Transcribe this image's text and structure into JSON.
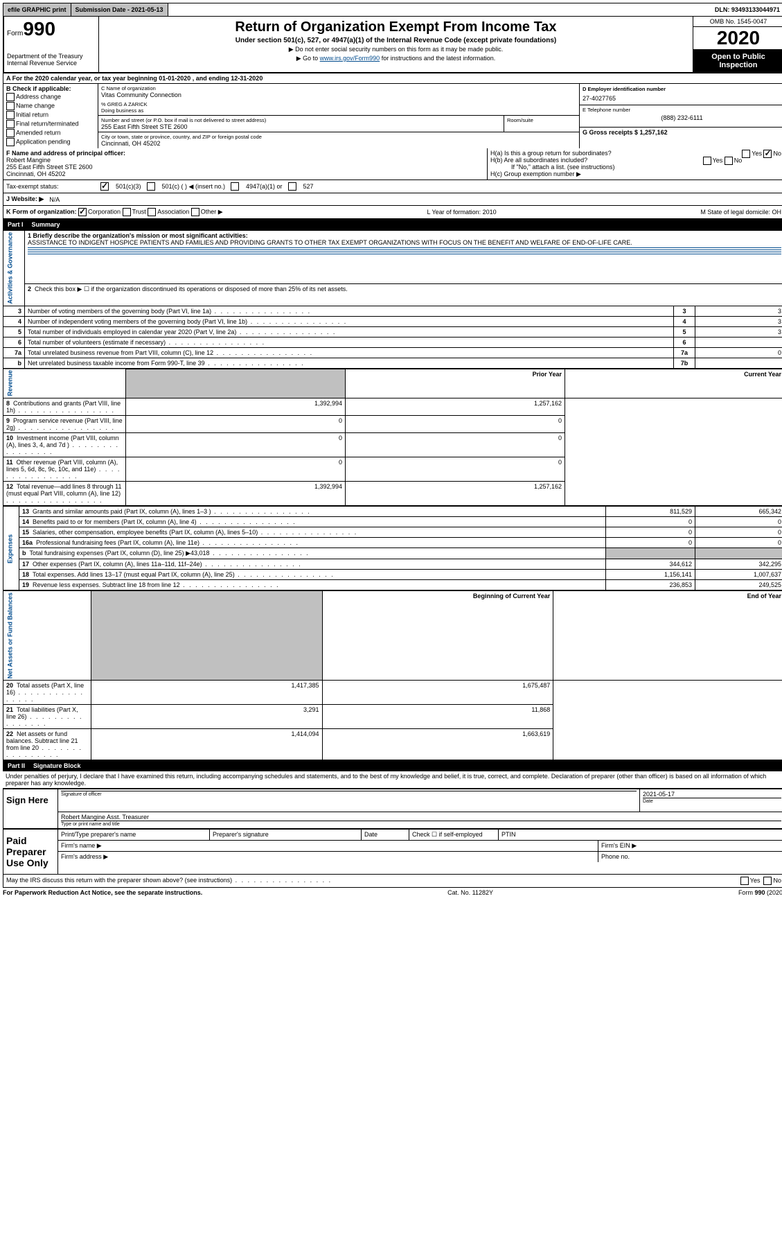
{
  "topbar": {
    "efile_label": "efile GRAPHIC print",
    "sub_date_label": "Submission Date - 2021-05-13",
    "dln_label": "DLN: 93493133044971"
  },
  "header": {
    "form_label": "Form",
    "form_num": "990",
    "dept": "Department of the Treasury",
    "irs": "Internal Revenue Service",
    "title": "Return of Organization Exempt From Income Tax",
    "subtitle": "Under section 501(c), 527, or 4947(a)(1) of the Internal Revenue Code (except private foundations)",
    "note1": "▶ Do not enter social security numbers on this form as it may be made public.",
    "note2_pre": "▶ Go to ",
    "note2_link": "www.irs.gov/Form990",
    "note2_post": " for instructions and the latest information.",
    "omb": "OMB No. 1545-0047",
    "year": "2020",
    "open": "Open to Public Inspection"
  },
  "row_a": "A For the 2020 calendar year, or tax year beginning 01-01-2020   , and ending 12-31-2020",
  "col_b": {
    "hdr": "B Check if applicable:",
    "opts": [
      "Address change",
      "Name change",
      "Initial return",
      "Final return/terminated",
      "Amended return",
      "Application pending"
    ]
  },
  "col_c": {
    "name_lbl": "C Name of organization",
    "name": "Vitas Community Connection",
    "care_lbl": "% GREG A ZARICK",
    "dba_lbl": "Doing business as",
    "addr_lbl": "Number and street (or P.O. box if mail is not delivered to street address)",
    "room_lbl": "Room/suite",
    "addr": "255 East Fifth Street STE 2600",
    "city_lbl": "City or town, state or province, country, and ZIP or foreign postal code",
    "city": "Cincinnati, OH  45202"
  },
  "col_de": {
    "d_lbl": "D Employer identification number",
    "d_val": "27-4027765",
    "e_lbl": "E Telephone number",
    "e_val": "(888) 232-6111",
    "g_lbl": "G Gross receipts $ 1,257,162"
  },
  "row_f": {
    "lbl": "F  Name and address of principal officer:",
    "name": "Robert Mangine",
    "addr1": "255 East Fifth Street STE 2600",
    "addr2": "Cincinnati, OH  45202"
  },
  "row_h": {
    "ha": "H(a)  Is this a group return for subordinates?",
    "hb": "H(b)  Are all subordinates included?",
    "hb_note": "If \"No,\" attach a list. (see instructions)",
    "hc": "H(c)  Group exemption number ▶",
    "yes": "Yes",
    "no": "No"
  },
  "tax": {
    "lbl": "Tax-exempt status:",
    "o1": "501(c)(3)",
    "o2": "501(c) (   ) ◀ (insert no.)",
    "o3": "4947(a)(1) or",
    "o4": "527"
  },
  "web": {
    "lbl": "J   Website: ▶",
    "val": "N/A"
  },
  "row_k": {
    "k_lbl": "K Form of organization:",
    "k_opts": [
      "Corporation",
      "Trust",
      "Association",
      "Other ▶"
    ],
    "l": "L Year of formation: 2010",
    "m": "M State of legal domicile: OH"
  },
  "part1": {
    "num": "Part I",
    "title": "Summary"
  },
  "summary": {
    "line1_lbl": "1 Briefly describe the organization's mission or most significant activities:",
    "line1_txt": "ASSISTANCE TO INDIGENT HOSPICE PATIENTS AND FAMILIES AND PROVIDING GRANTS TO OTHER TAX EXEMPT ORGANIZATIONS WITH FOCUS ON THE BENEFIT AND WELFARE OF END-OF-LIFE CARE.",
    "line2": "Check this box ▶ ☐  if the organization discontinued its operations or disposed of more than 25% of its net assets."
  },
  "gov_label": "Activities & Governance",
  "rev_label": "Revenue",
  "exp_label": "Expenses",
  "net_label": "Net Assets or Fund Balances",
  "lines_gov": [
    {
      "n": "3",
      "d": "Number of voting members of the governing body (Part VI, line 1a)",
      "b": "3",
      "v": "3"
    },
    {
      "n": "4",
      "d": "Number of independent voting members of the governing body (Part VI, line 1b)",
      "b": "4",
      "v": "3"
    },
    {
      "n": "5",
      "d": "Total number of individuals employed in calendar year 2020 (Part V, line 2a)",
      "b": "5",
      "v": "3"
    },
    {
      "n": "6",
      "d": "Total number of volunteers (estimate if necessary)",
      "b": "6",
      "v": ""
    },
    {
      "n": "7a",
      "d": "Total unrelated business revenue from Part VIII, column (C), line 12",
      "b": "7a",
      "v": "0"
    },
    {
      "n": "b",
      "d": "Net unrelated business taxable income from Form 990-T, line 39",
      "b": "7b",
      "v": ""
    }
  ],
  "col_hdr": {
    "prior": "Prior Year",
    "current": "Current Year"
  },
  "lines_rev": [
    {
      "n": "8",
      "d": "Contributions and grants (Part VIII, line 1h)",
      "p": "1,392,994",
      "c": "1,257,162"
    },
    {
      "n": "9",
      "d": "Program service revenue (Part VIII, line 2g)",
      "p": "0",
      "c": "0"
    },
    {
      "n": "10",
      "d": "Investment income (Part VIII, column (A), lines 3, 4, and 7d )",
      "p": "0",
      "c": "0"
    },
    {
      "n": "11",
      "d": "Other revenue (Part VIII, column (A), lines 5, 6d, 8c, 9c, 10c, and 11e)",
      "p": "0",
      "c": "0"
    },
    {
      "n": "12",
      "d": "Total revenue—add lines 8 through 11 (must equal Part VIII, column (A), line 12)",
      "p": "1,392,994",
      "c": "1,257,162"
    }
  ],
  "lines_exp": [
    {
      "n": "13",
      "d": "Grants and similar amounts paid (Part IX, column (A), lines 1–3 )",
      "p": "811,529",
      "c": "665,342"
    },
    {
      "n": "14",
      "d": "Benefits paid to or for members (Part IX, column (A), line 4)",
      "p": "0",
      "c": "0"
    },
    {
      "n": "15",
      "d": "Salaries, other compensation, employee benefits (Part IX, column (A), lines 5–10)",
      "p": "0",
      "c": "0"
    },
    {
      "n": "16a",
      "d": "Professional fundraising fees (Part IX, column (A), line 11e)",
      "p": "0",
      "c": "0"
    },
    {
      "n": "b",
      "d": "Total fundraising expenses (Part IX, column (D), line 25) ▶43,018",
      "p": "",
      "c": "",
      "shade": true
    },
    {
      "n": "17",
      "d": "Other expenses (Part IX, column (A), lines 11a–11d, 11f–24e)",
      "p": "344,612",
      "c": "342,295"
    },
    {
      "n": "18",
      "d": "Total expenses. Add lines 13–17 (must equal Part IX, column (A), line 25)",
      "p": "1,156,141",
      "c": "1,007,637"
    },
    {
      "n": "19",
      "d": "Revenue less expenses. Subtract line 18 from line 12",
      "p": "236,853",
      "c": "249,525"
    }
  ],
  "col_hdr2": {
    "beg": "Beginning of Current Year",
    "end": "End of Year"
  },
  "lines_net": [
    {
      "n": "20",
      "d": "Total assets (Part X, line 16)",
      "p": "1,417,385",
      "c": "1,675,487"
    },
    {
      "n": "21",
      "d": "Total liabilities (Part X, line 26)",
      "p": "3,291",
      "c": "11,868"
    },
    {
      "n": "22",
      "d": "Net assets or fund balances. Subtract line 21 from line 20",
      "p": "1,414,094",
      "c": "1,663,619"
    }
  ],
  "part2": {
    "num": "Part II",
    "title": "Signature Block"
  },
  "sig": {
    "decl": "Under penalties of perjury, I declare that I have examined this return, including accompanying schedules and statements, and to the best of my knowledge and belief, it is true, correct, and complete. Declaration of preparer (other than officer) is based on all information of which preparer has any knowledge.",
    "sign_here": "Sign Here",
    "sig_officer": "Signature of officer",
    "date_lbl": "Date",
    "date_val": "2021-05-17",
    "name_title": "Robert Mangine  Asst. Treasurer",
    "type_lbl": "Type or print name and title",
    "paid": "Paid Preparer Use Only",
    "pp_name": "Print/Type preparer's name",
    "pp_sig": "Preparer's signature",
    "pp_date": "Date",
    "pp_check": "Check ☐ if self-employed",
    "ptin": "PTIN",
    "firm_name": "Firm's name   ▶",
    "firm_ein": "Firm's EIN ▶",
    "firm_addr": "Firm's address ▶",
    "phone": "Phone no."
  },
  "footer": {
    "discuss": "May the IRS discuss this return with the preparer shown above? (see instructions)",
    "yes": "Yes",
    "no": "No",
    "pra": "For Paperwork Reduction Act Notice, see the separate instructions.",
    "cat": "Cat. No. 11282Y",
    "form": "Form 990 (2020)"
  }
}
